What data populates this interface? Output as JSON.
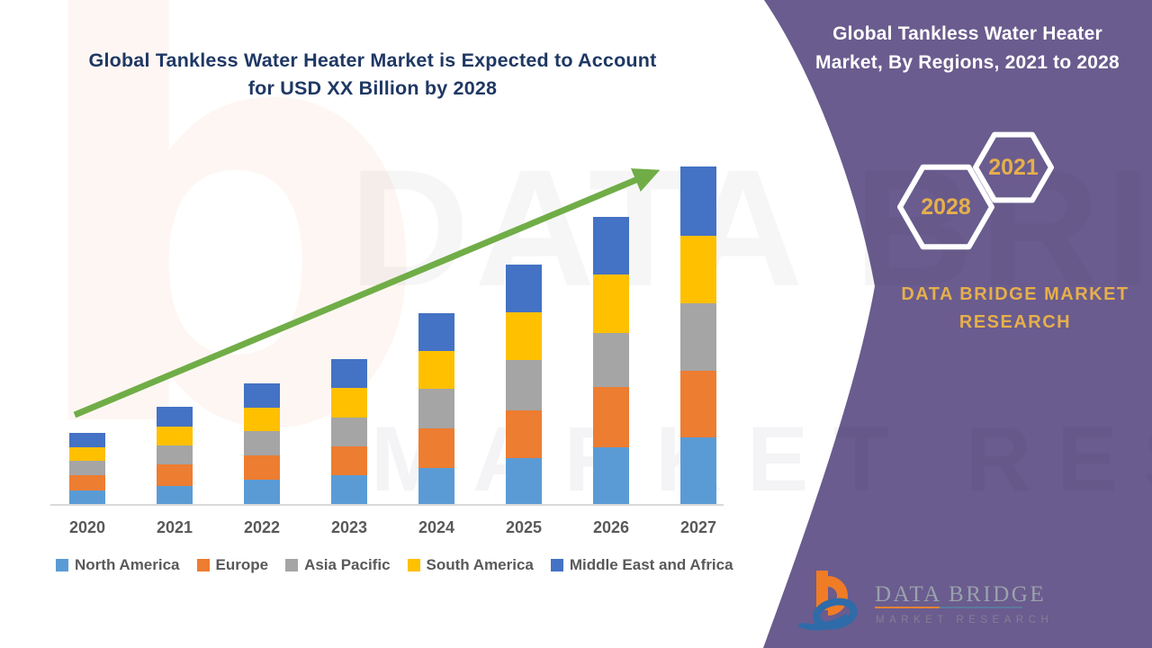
{
  "title": {
    "line1": "Global Tankless Water Heater Market is Expected to Account",
    "line2": "for USD XX Billion by 2028",
    "color": "#1F3864"
  },
  "chart_data": {
    "type": "bar",
    "stacked": true,
    "title": "Global Tankless Water Heater Market is Expected to Account for USD XX Billion by 2028",
    "xlabel": "",
    "ylabel": "",
    "units": "relative market size (actual USD values shown as XX, not labeled)",
    "y_axis_visible": false,
    "grid": false,
    "legend_position": "bottom",
    "categories": [
      "2020",
      "2021",
      "2022",
      "2023",
      "2024",
      "2025",
      "2026",
      "2027"
    ],
    "series": [
      {
        "name": "North America",
        "color": "#5B9BD5",
        "values": [
          16,
          21,
          28,
          33,
          41,
          52,
          64,
          75
        ]
      },
      {
        "name": "Europe",
        "color": "#ED7D31",
        "values": [
          17,
          24,
          27,
          32,
          44,
          53,
          67,
          74
        ]
      },
      {
        "name": "Asia Pacific",
        "color": "#A5A5A5",
        "values": [
          16,
          21,
          27,
          32,
          44,
          56,
          60,
          75
        ]
      },
      {
        "name": "South America",
        "color": "#FFC000",
        "values": [
          15,
          21,
          26,
          33,
          42,
          53,
          65,
          75
        ]
      },
      {
        "name": "Middle East and Africa",
        "color": "#4472C4",
        "values": [
          16,
          22,
          27,
          32,
          42,
          53,
          64,
          77
        ]
      }
    ],
    "stack_totals": [
      80,
      109,
      135,
      162,
      213,
      267,
      320,
      376
    ],
    "trend_arrow": {
      "color": "#70AD47",
      "direction": "up",
      "from_year": "2020",
      "to_year": "2027"
    }
  },
  "side_panel": {
    "bg_color": "#6A5C8E",
    "heading_line1": "Global Tankless Water Heater",
    "heading_line2": "Market, By Regions, 2021 to 2028",
    "hexagon_back_year": "2028",
    "hexagon_front_year": "2021",
    "hexagon_text_color": "#E6AF4B",
    "brand_line1": "DATA BRIDGE MARKET",
    "brand_line2": "RESEARCH"
  },
  "logo": {
    "name": "DATA BRIDGE",
    "subtitle": "MARKET RESEARCH"
  },
  "watermark": {
    "letter": "b",
    "text1": "DATA BRIDGE",
    "text2": "MARKET RESEARCH"
  }
}
